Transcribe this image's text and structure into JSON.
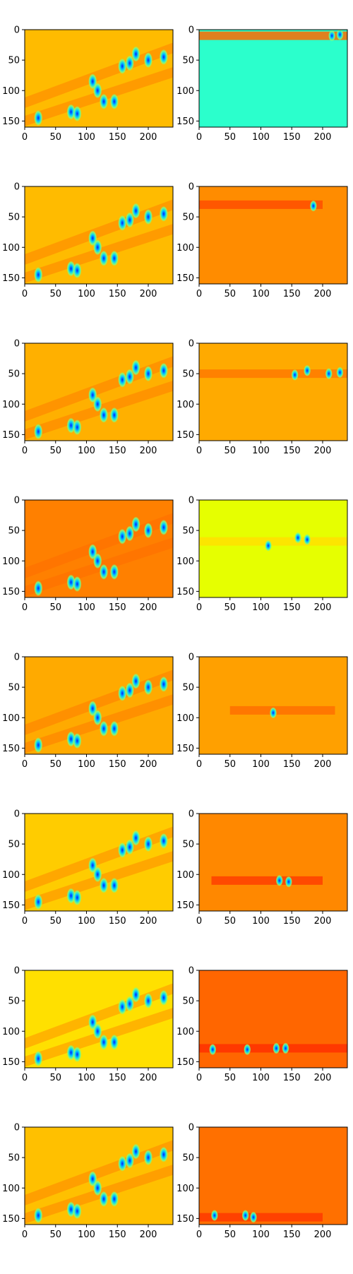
{
  "chart_data": [
    {
      "type": "heatmap",
      "panel": "row1-left",
      "xlim": [
        0,
        240
      ],
      "ylim": [
        160,
        0
      ],
      "xticks": [
        0,
        50,
        100,
        150,
        200
      ],
      "yticks": [
        0,
        50,
        100,
        150
      ],
      "colormap": "jet",
      "background": "#ffbb00",
      "band": null
    },
    {
      "type": "heatmap",
      "panel": "row1-right",
      "xlim": [
        0,
        240
      ],
      "ylim": [
        160,
        0
      ],
      "xticks": [
        0,
        50,
        100,
        150,
        200
      ],
      "yticks": [
        0,
        50,
        100,
        150
      ],
      "colormap": "jet",
      "background": "#2bffcc",
      "band": {
        "y": 10,
        "x": [
          0,
          240
        ],
        "color": "#ff6a00"
      }
    },
    {
      "type": "heatmap",
      "panel": "row2-left",
      "xlim": [
        0,
        240
      ],
      "ylim": [
        160,
        0
      ],
      "xticks": [
        0,
        50,
        100,
        150,
        200
      ],
      "yticks": [
        0,
        50,
        100,
        150
      ],
      "colormap": "jet",
      "background": "#ffbb00",
      "band": null
    },
    {
      "type": "heatmap",
      "panel": "row2-right",
      "xlim": [
        0,
        240
      ],
      "ylim": [
        160,
        0
      ],
      "xticks": [
        0,
        50,
        100,
        150,
        200
      ],
      "yticks": [
        0,
        50,
        100,
        150
      ],
      "colormap": "jet",
      "background": "#ff8c00",
      "band": {
        "y": 30,
        "x": [
          0,
          200
        ],
        "color": "#ff4d00"
      }
    },
    {
      "type": "heatmap",
      "panel": "row3-left",
      "xlim": [
        0,
        240
      ],
      "ylim": [
        160,
        0
      ],
      "xticks": [
        0,
        50,
        100,
        150,
        200
      ],
      "yticks": [
        0,
        50,
        100,
        150
      ],
      "colormap": "jet",
      "background": "#ffb000",
      "band": null
    },
    {
      "type": "heatmap",
      "panel": "row3-right",
      "xlim": [
        0,
        240
      ],
      "ylim": [
        160,
        0
      ],
      "xticks": [
        0,
        50,
        100,
        150,
        200
      ],
      "yticks": [
        0,
        50,
        100,
        150
      ],
      "colormap": "jet",
      "background": "#ffaa00",
      "band": {
        "y": 50,
        "x": [
          0,
          240
        ],
        "color": "#ff7a00"
      }
    },
    {
      "type": "heatmap",
      "panel": "row4-left",
      "xlim": [
        0,
        240
      ],
      "ylim": [
        160,
        0
      ],
      "xticks": [
        0,
        50,
        100,
        150,
        200
      ],
      "yticks": [
        0,
        50,
        100,
        150
      ],
      "colormap": "jet",
      "background": "#ff8000",
      "band": null
    },
    {
      "type": "heatmap",
      "panel": "row4-right",
      "xlim": [
        0,
        240
      ],
      "ylim": [
        160,
        0
      ],
      "xticks": [
        0,
        50,
        100,
        150,
        200
      ],
      "yticks": [
        0,
        50,
        100,
        150
      ],
      "colormap": "jet",
      "background": "#e6ff00",
      "band": {
        "y": 68,
        "x": [
          0,
          240
        ],
        "color": "#ffe000"
      }
    },
    {
      "type": "heatmap",
      "panel": "row5-left",
      "xlim": [
        0,
        240
      ],
      "ylim": [
        160,
        0
      ],
      "xticks": [
        0,
        50,
        100,
        150,
        200
      ],
      "yticks": [
        0,
        50,
        100,
        150
      ],
      "colormap": "jet",
      "background": "#ffaa00",
      "band": null
    },
    {
      "type": "heatmap",
      "panel": "row5-right",
      "xlim": [
        0,
        240
      ],
      "ylim": [
        160,
        0
      ],
      "xticks": [
        0,
        50,
        100,
        150,
        200
      ],
      "yticks": [
        0,
        50,
        100,
        150
      ],
      "colormap": "jet",
      "background": "#ffa000",
      "band": {
        "y": 88,
        "x": [
          50,
          220
        ],
        "color": "#ff7000"
      }
    },
    {
      "type": "heatmap",
      "panel": "row6-left",
      "xlim": [
        0,
        240
      ],
      "ylim": [
        160,
        0
      ],
      "xticks": [
        0,
        50,
        100,
        150,
        200
      ],
      "yticks": [
        0,
        50,
        100,
        150
      ],
      "colormap": "jet",
      "background": "#ffcc00",
      "band": null
    },
    {
      "type": "heatmap",
      "panel": "row6-right",
      "xlim": [
        0,
        240
      ],
      "ylim": [
        160,
        0
      ],
      "xticks": [
        0,
        50,
        100,
        150,
        200
      ],
      "yticks": [
        0,
        50,
        100,
        150
      ],
      "colormap": "jet",
      "background": "#ff8800",
      "band": {
        "y": 110,
        "x": [
          20,
          200
        ],
        "color": "#ff4000"
      }
    },
    {
      "type": "heatmap",
      "panel": "row7-left",
      "xlim": [
        0,
        240
      ],
      "ylim": [
        160,
        0
      ],
      "xticks": [
        0,
        50,
        100,
        150,
        200
      ],
      "yticks": [
        0,
        50,
        100,
        150
      ],
      "colormap": "jet",
      "background": "#ffe000",
      "band": null
    },
    {
      "type": "heatmap",
      "panel": "row7-right",
      "xlim": [
        0,
        240
      ],
      "ylim": [
        160,
        0
      ],
      "xticks": [
        0,
        50,
        100,
        150,
        200
      ],
      "yticks": [
        0,
        50,
        100,
        150
      ],
      "colormap": "jet",
      "background": "#ff6600",
      "band": {
        "y": 128,
        "x": [
          0,
          240
        ],
        "color": "#ff3000"
      }
    },
    {
      "type": "heatmap",
      "panel": "row8-left",
      "xlim": [
        0,
        240
      ],
      "ylim": [
        160,
        0
      ],
      "xticks": [
        0,
        50,
        100,
        150,
        200
      ],
      "yticks": [
        0,
        50,
        100,
        150
      ],
      "colormap": "jet",
      "background": "#ffc000",
      "band": null
    },
    {
      "type": "heatmap",
      "panel": "row8-right",
      "xlim": [
        0,
        240
      ],
      "ylim": [
        160,
        0
      ],
      "xticks": [
        0,
        50,
        100,
        150,
        200
      ],
      "yticks": [
        0,
        50,
        100,
        150
      ],
      "colormap": "jet",
      "background": "#ff7000",
      "band": {
        "y": 148,
        "x": [
          0,
          200
        ],
        "color": "#ff3800"
      }
    }
  ],
  "blob_colors": {
    "core": "#0020ff",
    "mid": "#00d0ff",
    "edge": "#7fff7f"
  },
  "left_blobs": [
    {
      "x": 22,
      "y": 145
    },
    {
      "x": 75,
      "y": 135
    },
    {
      "x": 85,
      "y": 138
    },
    {
      "x": 110,
      "y": 85
    },
    {
      "x": 118,
      "y": 100
    },
    {
      "x": 128,
      "y": 118
    },
    {
      "x": 145,
      "y": 118
    },
    {
      "x": 158,
      "y": 60
    },
    {
      "x": 170,
      "y": 55
    },
    {
      "x": 180,
      "y": 40
    },
    {
      "x": 200,
      "y": 50
    },
    {
      "x": 225,
      "y": 45
    }
  ],
  "right_blobs": [
    [
      {
        "x": 228,
        "y": 8
      },
      {
        "x": 215,
        "y": 10
      }
    ],
    [
      {
        "x": 185,
        "y": 32
      }
    ],
    [
      {
        "x": 155,
        "y": 52
      },
      {
        "x": 175,
        "y": 45
      },
      {
        "x": 210,
        "y": 50
      },
      {
        "x": 228,
        "y": 48
      }
    ],
    [
      {
        "x": 112,
        "y": 75
      },
      {
        "x": 160,
        "y": 62
      },
      {
        "x": 175,
        "y": 65
      }
    ],
    [
      {
        "x": 120,
        "y": 92
      }
    ],
    [
      {
        "x": 130,
        "y": 110
      },
      {
        "x": 145,
        "y": 112
      }
    ],
    [
      {
        "x": 22,
        "y": 130
      },
      {
        "x": 78,
        "y": 130
      },
      {
        "x": 125,
        "y": 128
      },
      {
        "x": 140,
        "y": 128
      }
    ],
    [
      {
        "x": 25,
        "y": 145
      },
      {
        "x": 75,
        "y": 145
      },
      {
        "x": 88,
        "y": 148
      }
    ]
  ]
}
